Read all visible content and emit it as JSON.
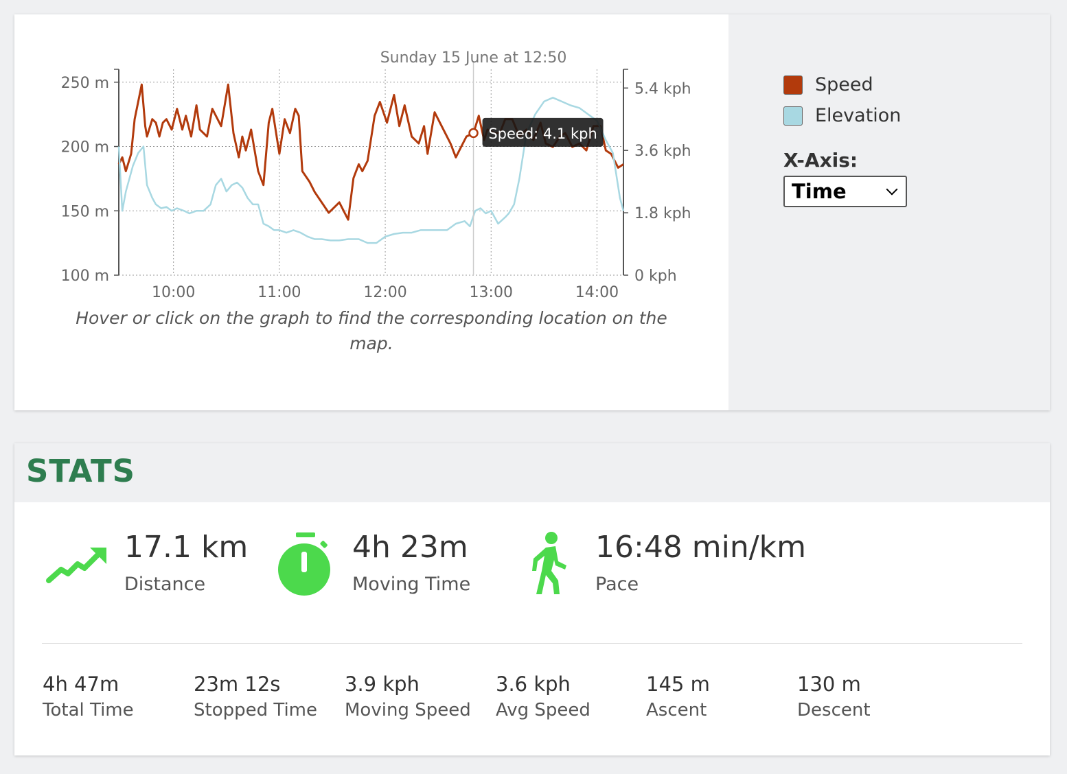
{
  "chart": {
    "hover_time": "Sunday 15 June at 12:50",
    "tooltip": "Speed: 4.1 kph",
    "caption": "Hover or click on the graph to find the corresponding location on the map.",
    "legend": [
      {
        "label": "Speed",
        "color": "#b23a0c"
      },
      {
        "label": "Elevation",
        "color": "#a8d8e2"
      }
    ],
    "xaxis_label": "X-Axis:",
    "xaxis_selected": "Time"
  },
  "chart_data": {
    "type": "line",
    "x_tick_labels": [
      "10:00",
      "11:00",
      "12:00",
      "13:00",
      "14:00"
    ],
    "x_ticks_minutes": [
      600,
      660,
      720,
      780,
      840
    ],
    "xlim_minutes": [
      569,
      855
    ],
    "y_left": {
      "ticks": [
        "100 m",
        "150 m",
        "200 m",
        "250 m"
      ],
      "tick_values": [
        100,
        150,
        200,
        250
      ],
      "range": [
        100,
        260
      ]
    },
    "y_right": {
      "ticks": [
        "0 kph",
        "1.8 kph",
        "3.6 kph",
        "5.4 kph"
      ],
      "tick_values": [
        0,
        1.8,
        3.6,
        5.4
      ],
      "range": [
        0,
        5.94
      ]
    },
    "hover_minutes": 770,
    "grid": true,
    "series": [
      {
        "name": "Speed",
        "axis": "right",
        "color": "#b23a0c",
        "x_minutes": [
          569,
          571,
          573,
          576,
          578,
          582,
          584,
          585,
          588,
          590,
          592,
          594,
          596,
          599,
          602,
          605,
          607,
          610,
          613,
          615,
          619,
          622,
          627,
          631,
          634,
          637,
          639,
          641,
          644,
          648,
          651,
          654,
          656,
          660,
          663,
          666,
          669,
          671,
          673,
          677,
          680,
          684,
          688,
          694,
          699,
          702,
          705,
          707,
          710,
          714,
          717,
          721,
          725,
          728,
          731,
          735,
          739,
          742,
          744,
          748,
          751,
          754,
          757,
          760,
          763,
          766,
          770,
          773,
          776,
          778,
          782,
          785,
          788,
          792,
          796,
          800,
          804,
          808,
          811,
          815,
          819,
          822,
          826,
          830,
          834,
          838,
          842,
          845,
          848,
          852,
          855
        ],
        "values": [
          3.2,
          3.4,
          3.0,
          3.5,
          4.5,
          5.5,
          4.3,
          4.0,
          4.5,
          4.4,
          4.0,
          4.4,
          4.5,
          4.2,
          4.8,
          4.2,
          4.6,
          4.0,
          4.9,
          4.2,
          4.0,
          4.8,
          4.3,
          5.5,
          4.1,
          3.4,
          4.0,
          3.6,
          4.2,
          3.0,
          2.6,
          4.4,
          4.8,
          3.5,
          4.5,
          4.1,
          4.8,
          4.6,
          3.0,
          2.7,
          2.4,
          2.1,
          1.8,
          2.1,
          1.6,
          2.8,
          3.2,
          3.0,
          3.3,
          4.6,
          5.0,
          4.4,
          5.2,
          4.3,
          4.9,
          4.0,
          3.8,
          4.3,
          3.5,
          4.7,
          4.4,
          4.1,
          3.8,
          3.4,
          3.7,
          4.0,
          4.1,
          4.6,
          3.9,
          4.2,
          4.1,
          4.1,
          4.5,
          4.5,
          4.0,
          4.2,
          3.9,
          4.4,
          3.8,
          3.7,
          4.0,
          4.1,
          3.7,
          3.8,
          3.6,
          4.3,
          4.3,
          3.6,
          3.5,
          3.1,
          3.2
        ]
      },
      {
        "name": "Elevation",
        "axis": "left",
        "color": "#a8d8e2",
        "x_minutes": [
          569,
          571,
          573,
          577,
          580,
          583,
          585,
          588,
          590,
          593,
          596,
          599,
          602,
          606,
          609,
          613,
          617,
          621,
          624,
          627,
          630,
          633,
          636,
          639,
          642,
          645,
          648,
          651,
          654,
          657,
          660,
          664,
          668,
          672,
          676,
          680,
          684,
          689,
          694,
          699,
          705,
          710,
          715,
          720,
          725,
          730,
          735,
          740,
          745,
          750,
          755,
          760,
          765,
          768,
          771,
          774,
          777,
          780,
          784,
          788,
          790,
          793,
          796,
          800,
          805,
          810,
          815,
          820,
          825,
          830,
          835,
          840,
          845,
          849,
          853,
          855
        ],
        "values": [
          200,
          150,
          165,
          185,
          195,
          200,
          170,
          160,
          155,
          152,
          153,
          150,
          152,
          150,
          148,
          150,
          150,
          155,
          170,
          175,
          165,
          170,
          172,
          168,
          160,
          155,
          155,
          140,
          138,
          135,
          135,
          133,
          135,
          133,
          130,
          128,
          128,
          127,
          127,
          128,
          128,
          125,
          125,
          130,
          132,
          133,
          133,
          135,
          135,
          135,
          135,
          140,
          142,
          138,
          150,
          152,
          148,
          150,
          140,
          145,
          148,
          155,
          175,
          210,
          225,
          235,
          238,
          235,
          232,
          230,
          225,
          220,
          205,
          195,
          160,
          150
        ]
      }
    ]
  },
  "stats": {
    "title": "STATS",
    "big": [
      {
        "icon": "trending-up-icon",
        "value": "17.1 km",
        "label": "Distance"
      },
      {
        "icon": "stopwatch-icon",
        "value": "4h 23m",
        "label": "Moving Time"
      },
      {
        "icon": "walking-person-icon",
        "value": "16:48 min/km",
        "label": "Pace"
      }
    ],
    "small": [
      {
        "value": "4h 47m",
        "label": "Total Time"
      },
      {
        "value": "23m 12s",
        "label": "Stopped Time"
      },
      {
        "value": "3.9 kph",
        "label": "Moving Speed"
      },
      {
        "value": "3.6 kph",
        "label": "Avg Speed"
      },
      {
        "value": "145 m",
        "label": "Ascent"
      },
      {
        "value": "130 m",
        "label": "Descent"
      }
    ],
    "accent": "#4cd94c"
  }
}
